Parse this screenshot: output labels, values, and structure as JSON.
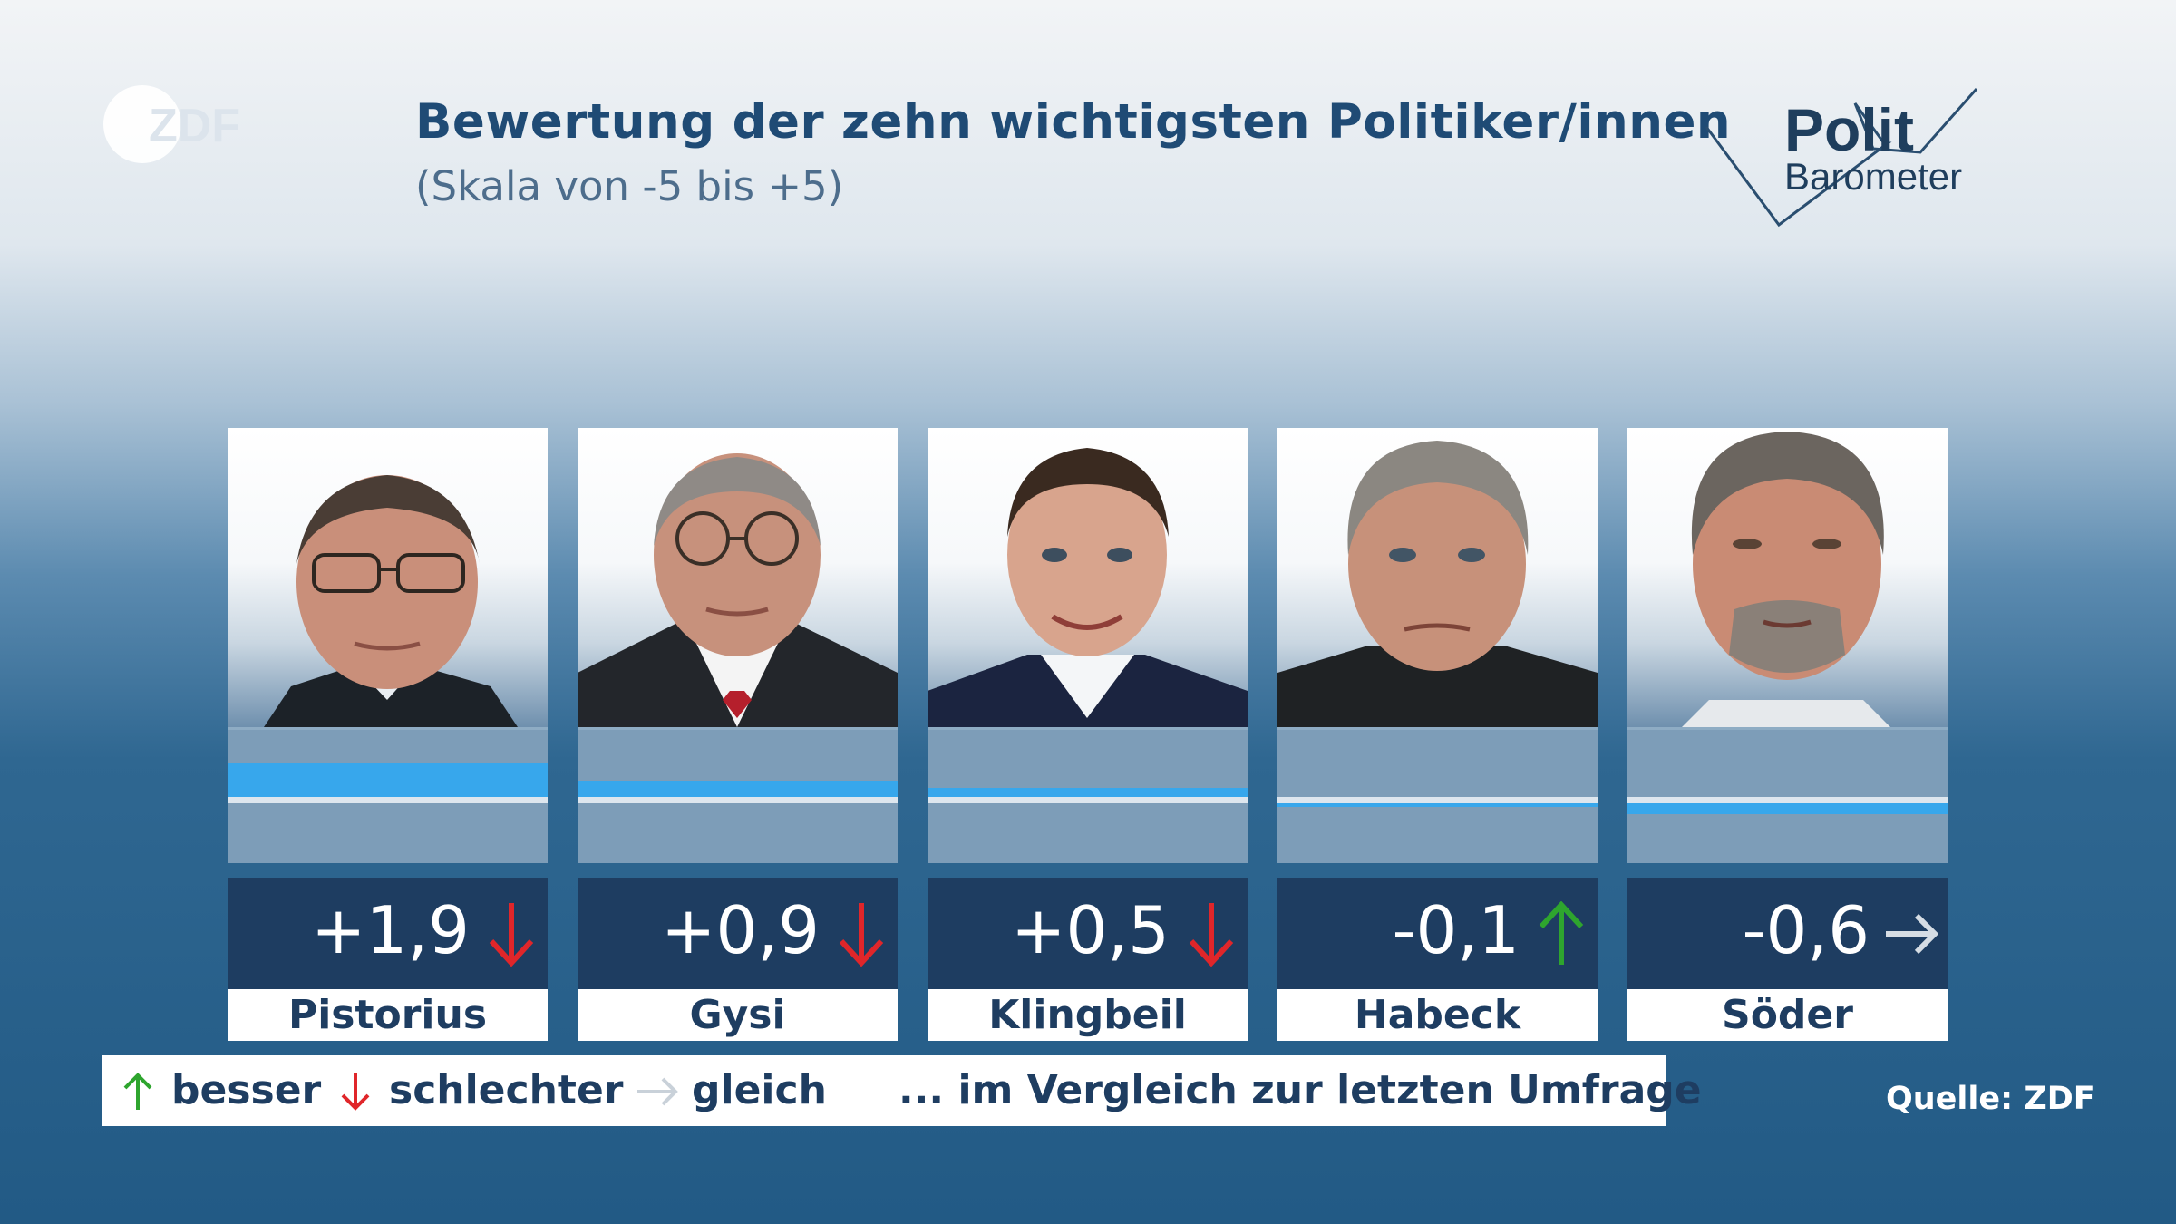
{
  "header": {
    "logo_text": "ZDF",
    "title": "Bewertung der zehn wichtigsten Politiker/innen",
    "subtitle": "(Skala von -5 bis +5)",
    "brand_line1": "Polit",
    "brand_line2": "Barometer"
  },
  "chart_data": {
    "type": "bar",
    "title": "Bewertung der zehn wichtigsten Politiker/innen",
    "subtitle": "(Skala von -5 bis +5)",
    "ylim": [
      -5,
      5
    ],
    "categories": [
      "Pistorius",
      "Gysi",
      "Klingbeil",
      "Habeck",
      "Söder"
    ],
    "values": [
      1.9,
      0.9,
      0.5,
      -0.1,
      -0.6
    ],
    "value_labels": [
      "+1,9",
      "+0,9",
      "+0,5",
      "-0,1",
      "-0,6"
    ],
    "trend": [
      "down",
      "down",
      "down",
      "up",
      "same"
    ]
  },
  "legend": {
    "better": "besser",
    "worse": "schlechter",
    "same": "gleich",
    "note": "... im Vergleich zur letzten Umfrage"
  },
  "source": "Quelle: ZDF",
  "colors": {
    "bar": "#37a7ec",
    "up": "#2ea52e",
    "down": "#e0262a",
    "same": "#d6dde4",
    "dark": "#1e3d61"
  }
}
